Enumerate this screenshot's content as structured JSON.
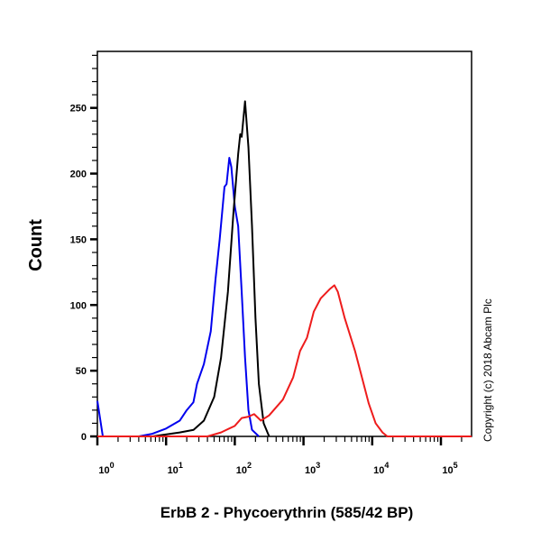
{
  "chart_data": {
    "type": "line",
    "title": "",
    "xlabel": "ErbB 2 - Phycoerythrin (585/42 BP)",
    "ylabel": "Count",
    "x_scale": "log",
    "xlim": [
      1,
      290000
    ],
    "ylim": [
      0,
      293
    ],
    "x_ticks": [
      {
        "base": "10",
        "exp": "0",
        "value": 1
      },
      {
        "base": "10",
        "exp": "1",
        "value": 10
      },
      {
        "base": "10",
        "exp": "2",
        "value": 100
      },
      {
        "base": "10",
        "exp": "3",
        "value": 1000
      },
      {
        "base": "10",
        "exp": "4",
        "value": 10000
      },
      {
        "base": "10",
        "exp": "5",
        "value": 100000
      }
    ],
    "y_ticks": [
      0,
      50,
      100,
      150,
      200,
      250
    ],
    "grid": false,
    "legend": "none",
    "series": [
      {
        "color": "#0000ee",
        "x": [
          1,
          1.2,
          4,
          6.3,
          10,
          15.8,
          20,
          25,
          28.2,
          35.5,
          44.7,
          52.5,
          60.3,
          70.8,
          75.9,
          83.2,
          89.1,
          100,
          112,
          126,
          141,
          158,
          178,
          224
        ],
        "y": [
          27,
          0,
          0,
          2,
          6,
          12,
          20,
          26,
          40,
          55,
          80,
          120,
          150,
          190,
          192,
          212,
          205,
          175,
          160,
          110,
          60,
          20,
          5,
          0
        ]
      },
      {
        "color": "#000000",
        "x": [
          1,
          6.3,
          15.8,
          25.1,
          35.5,
          50.1,
          63.1,
          79.4,
          95.5,
          112,
          120,
          126,
          141,
          158,
          178,
          200,
          224,
          263,
          316
        ],
        "y": [
          0,
          0,
          3,
          5,
          12,
          30,
          60,
          110,
          170,
          215,
          230,
          228,
          255,
          220,
          160,
          90,
          40,
          10,
          0
        ]
      },
      {
        "color": "#ee1c1c",
        "x": [
          1,
          40,
          63,
          100,
          126,
          158,
          191,
          240,
          316,
          501,
          708,
          891,
          1122,
          1413,
          1778,
          2399,
          2818,
          3162,
          3981,
          5623,
          7079,
          8913,
          11220,
          14125,
          16596,
          290000
        ],
        "y": [
          0,
          0,
          3,
          8,
          14,
          15,
          17,
          12,
          16,
          28,
          45,
          65,
          75,
          95,
          105,
          112,
          115,
          110,
          90,
          65,
          45,
          25,
          10,
          3,
          0,
          0
        ]
      }
    ]
  },
  "copyright": "Copyright (c) 2018 Abcam Plc"
}
